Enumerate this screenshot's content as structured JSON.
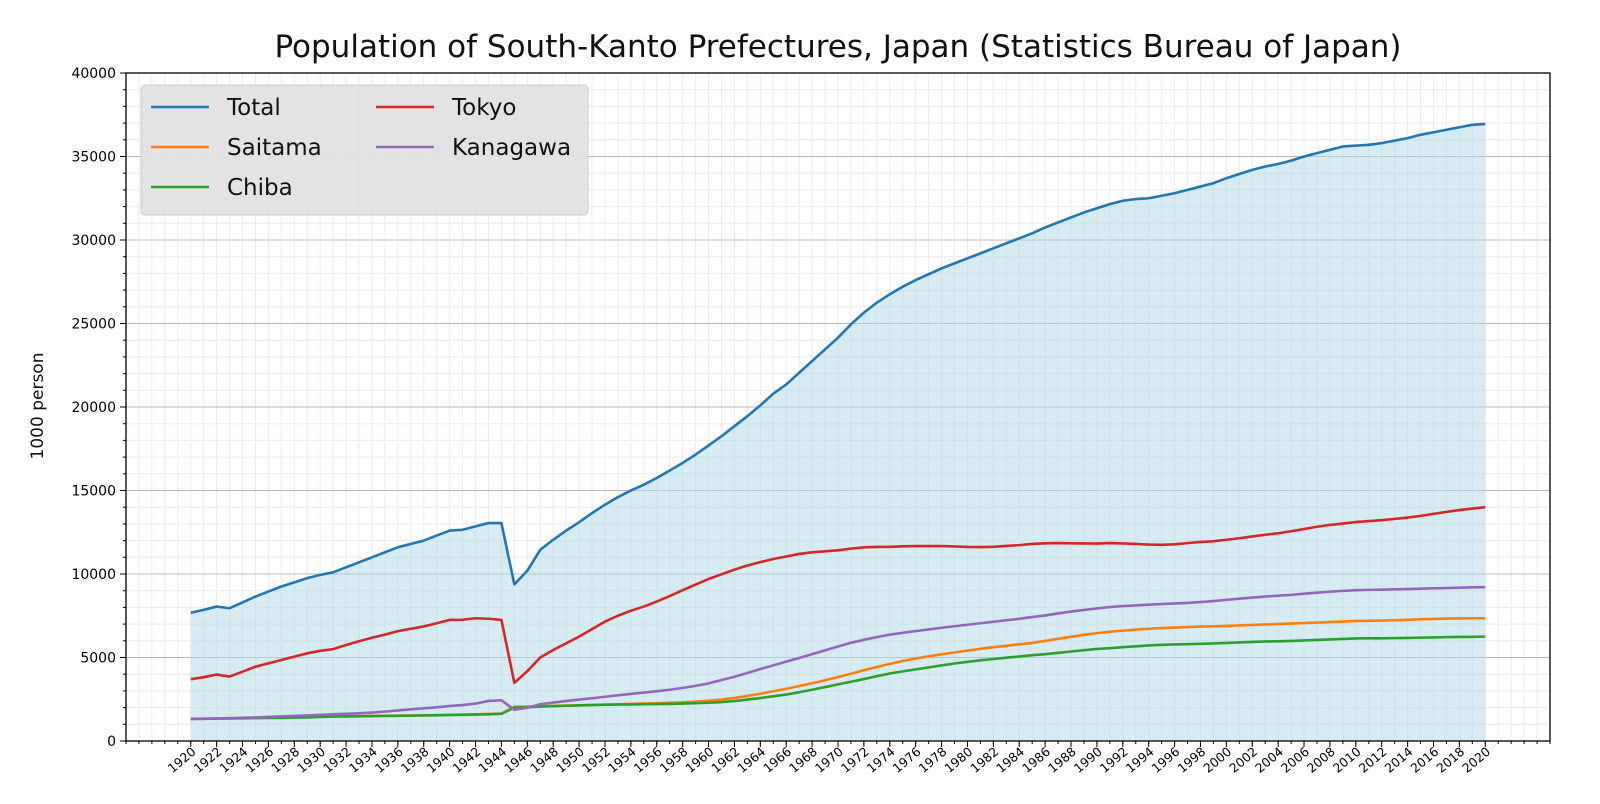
{
  "chart_data": {
    "type": "area",
    "title": "Population of South-Kanto Prefectures, Japan (Statistics Bureau of Japan)",
    "xlabel": "",
    "ylabel": "1000 person",
    "xlim": [
      1915,
      2025
    ],
    "ylim": [
      0,
      40000
    ],
    "y_ticks": [
      "0",
      "5000",
      "10000",
      "15000",
      "20000",
      "25000",
      "30000",
      "35000",
      "40000"
    ],
    "x_ticks": [
      "1920",
      "1922",
      "1924",
      "1926",
      "1928",
      "1930",
      "1932",
      "1934",
      "1936",
      "1938",
      "1940",
      "1942",
      "1944",
      "1946",
      "1948",
      "1950",
      "1952",
      "1954",
      "1956",
      "1958",
      "1960",
      "1962",
      "1964",
      "1966",
      "1968",
      "1970",
      "1972",
      "1974",
      "1976",
      "1978",
      "1980",
      "1982",
      "1984",
      "1986",
      "1988",
      "1990",
      "1992",
      "1994",
      "1996",
      "1998",
      "2000",
      "2002",
      "2004",
      "2006",
      "2008",
      "2010",
      "2012",
      "2014",
      "2016",
      "2018",
      "2020"
    ],
    "grid": true,
    "legend_position": "top-left",
    "area_fill_series": "Total",
    "area_fill_color": "#add8e6",
    "x": [
      1920,
      1921,
      1922,
      1923,
      1924,
      1925,
      1926,
      1927,
      1928,
      1929,
      1930,
      1931,
      1932,
      1933,
      1934,
      1935,
      1936,
      1937,
      1938,
      1939,
      1940,
      1941,
      1942,
      1943,
      1944,
      1945,
      1946,
      1947,
      1948,
      1949,
      1950,
      1951,
      1952,
      1953,
      1954,
      1955,
      1956,
      1957,
      1958,
      1959,
      1960,
      1961,
      1962,
      1963,
      1964,
      1965,
      1966,
      1967,
      1968,
      1969,
      1970,
      1971,
      1972,
      1973,
      1974,
      1975,
      1976,
      1977,
      1978,
      1979,
      1980,
      1981,
      1982,
      1983,
      1984,
      1985,
      1986,
      1987,
      1988,
      1989,
      1990,
      1991,
      1992,
      1993,
      1994,
      1995,
      1996,
      1997,
      1998,
      1999,
      2000,
      2001,
      2002,
      2003,
      2004,
      2005,
      2006,
      2007,
      2008,
      2009,
      2010,
      2011,
      2012,
      2013,
      2014,
      2015,
      2016,
      2017,
      2018,
      2019,
      2020
    ],
    "series": [
      {
        "name": "Total",
        "color": "#1f77b4",
        "values": [
          7680,
          7850,
          8050,
          7950,
          8300,
          8650,
          8950,
          9250,
          9500,
          9750,
          9950,
          10100,
          10400,
          10700,
          11000,
          11300,
          11600,
          11800,
          12000,
          12300,
          12600,
          12650,
          12850,
          13050,
          13050,
          9380,
          10200,
          11450,
          12050,
          12600,
          13100,
          13650,
          14150,
          14600,
          15000,
          15350,
          15750,
          16200,
          16650,
          17150,
          17700,
          18250,
          18850,
          19450,
          20100,
          20800,
          21350,
          22050,
          22750,
          23450,
          24150,
          24950,
          25650,
          26250,
          26750,
          27200,
          27600,
          27950,
          28300,
          28600,
          28900,
          29200,
          29500,
          29800,
          30100,
          30400,
          30750,
          31050,
          31350,
          31650,
          31900,
          32150,
          32350,
          32450,
          32500,
          32650,
          32800,
          33000,
          33200,
          33400,
          33700,
          33950,
          34200,
          34400,
          34550,
          34750,
          35000,
          35200,
          35400,
          35600,
          35650,
          35700,
          35800,
          35950,
          36100,
          36300,
          36450,
          36600,
          36750,
          36900,
          36950
        ]
      },
      {
        "name": "Saitama",
        "color": "#ff7f0e",
        "values": [
          1320,
          1330,
          1340,
          1355,
          1370,
          1390,
          1405,
          1420,
          1435,
          1450,
          1460,
          1470,
          1480,
          1490,
          1500,
          1510,
          1520,
          1530,
          1540,
          1550,
          1560,
          1580,
          1600,
          1620,
          1640,
          2050,
          2060,
          2080,
          2100,
          2120,
          2140,
          2160,
          2180,
          2200,
          2220,
          2240,
          2260,
          2290,
          2320,
          2360,
          2410,
          2480,
          2580,
          2700,
          2830,
          2980,
          3130,
          3290,
          3460,
          3640,
          3830,
          4030,
          4240,
          4430,
          4620,
          4790,
          4940,
          5070,
          5190,
          5300,
          5410,
          5520,
          5620,
          5700,
          5790,
          5870,
          5990,
          6120,
          6240,
          6360,
          6460,
          6540,
          6610,
          6670,
          6720,
          6760,
          6790,
          6820,
          6850,
          6870,
          6890,
          6920,
          6950,
          6980,
          7000,
          7030,
          7060,
          7090,
          7120,
          7150,
          7190,
          7200,
          7210,
          7230,
          7260,
          7290,
          7310,
          7330,
          7340,
          7350,
          7350
        ]
      },
      {
        "name": "Chiba",
        "color": "#2ca02c",
        "values": [
          1330,
          1340,
          1345,
          1350,
          1360,
          1370,
          1380,
          1390,
          1400,
          1410,
          1440,
          1460,
          1470,
          1480,
          1490,
          1500,
          1510,
          1520,
          1530,
          1540,
          1560,
          1570,
          1580,
          1600,
          1630,
          2000,
          2020,
          2060,
          2090,
          2110,
          2130,
          2150,
          2170,
          2180,
          2190,
          2200,
          2210,
          2220,
          2240,
          2260,
          2290,
          2330,
          2390,
          2480,
          2570,
          2680,
          2780,
          2920,
          3070,
          3230,
          3390,
          3550,
          3710,
          3880,
          4040,
          4170,
          4290,
          4410,
          4530,
          4640,
          4740,
          4830,
          4910,
          4990,
          5060,
          5140,
          5200,
          5280,
          5360,
          5440,
          5510,
          5560,
          5620,
          5670,
          5720,
          5760,
          5780,
          5800,
          5820,
          5840,
          5870,
          5900,
          5930,
          5960,
          5970,
          5990,
          6020,
          6050,
          6080,
          6110,
          6140,
          6150,
          6150,
          6160,
          6170,
          6190,
          6200,
          6220,
          6230,
          6240,
          6250
        ]
      },
      {
        "name": "Tokyo",
        "color": "#d62728",
        "values": [
          3700,
          3820,
          3980,
          3860,
          4150,
          4450,
          4650,
          4850,
          5050,
          5250,
          5400,
          5500,
          5750,
          5970,
          6180,
          6370,
          6580,
          6720,
          6860,
          7050,
          7250,
          7260,
          7350,
          7320,
          7250,
          3480,
          4180,
          5000,
          5450,
          5850,
          6250,
          6700,
          7150,
          7500,
          7800,
          8050,
          8350,
          8680,
          9030,
          9370,
          9700,
          9980,
          10260,
          10510,
          10710,
          10900,
          11050,
          11200,
          11300,
          11360,
          11420,
          11520,
          11600,
          11620,
          11630,
          11660,
          11670,
          11670,
          11670,
          11650,
          11620,
          11610,
          11630,
          11680,
          11730,
          11800,
          11840,
          11850,
          11840,
          11830,
          11820,
          11850,
          11830,
          11800,
          11760,
          11750,
          11780,
          11850,
          11920,
          11960,
          12050,
          12140,
          12250,
          12350,
          12440,
          12560,
          12690,
          12830,
          12940,
          13020,
          13110,
          13170,
          13220,
          13300,
          13380,
          13480,
          13600,
          13720,
          13830,
          13920,
          14000
        ]
      },
      {
        "name": "Kanagawa",
        "color": "#9467bd",
        "values": [
          1320,
          1330,
          1350,
          1370,
          1390,
          1410,
          1440,
          1470,
          1500,
          1530,
          1570,
          1600,
          1630,
          1660,
          1700,
          1760,
          1830,
          1900,
          1960,
          2020,
          2100,
          2150,
          2240,
          2400,
          2440,
          1870,
          1990,
          2200,
          2300,
          2390,
          2480,
          2560,
          2650,
          2740,
          2820,
          2900,
          2980,
          3070,
          3180,
          3300,
          3450,
          3650,
          3850,
          4070,
          4310,
          4530,
          4750,
          4970,
          5200,
          5430,
          5660,
          5880,
          6060,
          6220,
          6370,
          6480,
          6580,
          6680,
          6780,
          6870,
          6960,
          7050,
          7140,
          7230,
          7320,
          7420,
          7520,
          7640,
          7750,
          7850,
          7940,
          8020,
          8080,
          8120,
          8160,
          8200,
          8240,
          8270,
          8320,
          8380,
          8450,
          8520,
          8590,
          8650,
          8700,
          8750,
          8820,
          8880,
          8940,
          8990,
          9030,
          9050,
          9060,
          9080,
          9100,
          9120,
          9140,
          9160,
          9180,
          9200,
          9210
        ]
      }
    ]
  }
}
